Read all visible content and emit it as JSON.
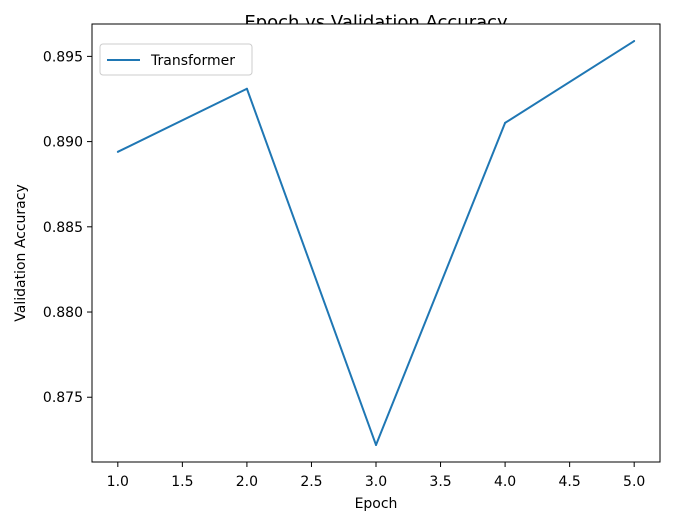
{
  "chart_data": {
    "type": "line",
    "title": "Epoch vs Validation Accuracy",
    "xlabel": "Epoch",
    "ylabel": "Validation Accuracy",
    "x": [
      1,
      2,
      3,
      4,
      5
    ],
    "series": [
      {
        "name": "Transformer",
        "color": "#1f77b4",
        "values": [
          0.8894,
          0.8931,
          0.8722,
          0.8911,
          0.8959
        ]
      }
    ],
    "xlim": [
      0.8,
      5.2
    ],
    "ylim": [
      0.8712,
      0.8969
    ],
    "xticks": [
      1.0,
      1.5,
      2.0,
      2.5,
      3.0,
      3.5,
      4.0,
      4.5,
      5.0
    ],
    "xtick_labels": [
      "1.0",
      "1.5",
      "2.0",
      "2.5",
      "3.0",
      "3.5",
      "4.0",
      "4.5",
      "5.0"
    ],
    "yticks": [
      0.875,
      0.88,
      0.885,
      0.89,
      0.895
    ],
    "ytick_labels": [
      "0.875",
      "0.880",
      "0.885",
      "0.890",
      "0.895"
    ],
    "grid": false,
    "legend_position": "upper-left"
  }
}
